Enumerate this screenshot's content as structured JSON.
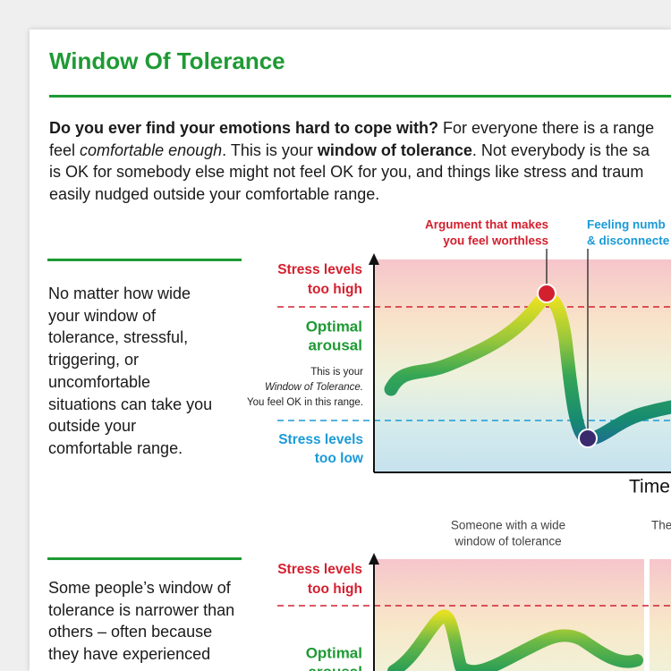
{
  "header": {
    "title": "Window Of Tolerance"
  },
  "intro": {
    "lines": [
      [
        "Do you ever find your emotions hard to cope with?",
        " For everyone there is a range"
      ],
      [
        "feel ",
        "comfortable enough",
        ". This is your ",
        "window of tolerance",
        ". Not everybody is the sa"
      ],
      [
        "is OK for somebody else might not feel OK for you, and things like stress and traum"
      ],
      [
        "easily nudged outside your comfortable range."
      ]
    ]
  },
  "sidebar_notes": [
    {
      "lines": [
        "No matter how wide",
        "your window of",
        "tolerance, stressful,",
        "triggering, or",
        "uncomfortable",
        "situations can take you",
        "outside your",
        "comfortable range."
      ]
    },
    {
      "lines": [
        "Some people’s window of",
        "tolerance is narrower than",
        "others – often because",
        "they have experienced"
      ]
    }
  ],
  "diagram_1": {
    "too_high": [
      "Stress levels",
      "too high"
    ],
    "optimal": [
      "Optimal",
      "arousal"
    ],
    "window_note": [
      "This is your",
      "Window of Tolerance.",
      "You feel OK in this range."
    ],
    "too_low": [
      "Stress levels",
      "too low"
    ],
    "annotations": [
      [
        "Argument that makes",
        "you feel worthless"
      ],
      [
        "Feeling numb",
        "& disconnecte"
      ]
    ],
    "x_axis_label": "Time"
  },
  "diagram_2": {
    "captions": [
      [
        "Someone with a wide",
        "window of tolerance"
      ],
      [
        "The"
      ]
    ],
    "too_high": [
      "Stress levels",
      "too high"
    ],
    "optimal": [
      "Optimal",
      "arousal"
    ]
  }
}
